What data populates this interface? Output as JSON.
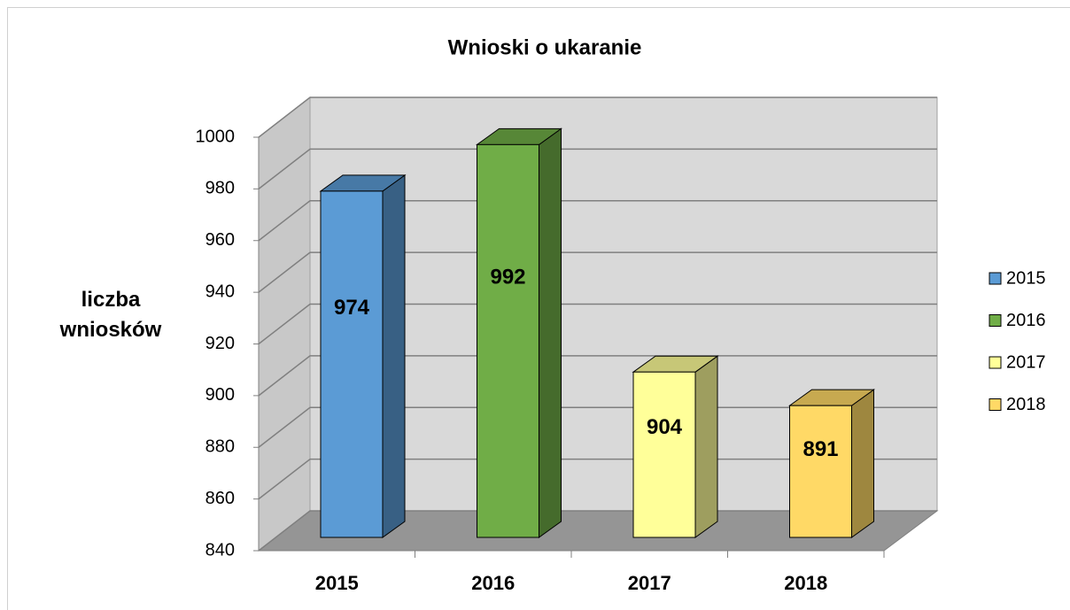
{
  "chart_data": {
    "type": "bar3d",
    "title": "Wnioski o ukaranie",
    "y_label": "liczba wniosków",
    "categories": [
      "2015",
      "2016",
      "2017",
      "2018"
    ],
    "values": [
      974,
      992,
      904,
      891
    ],
    "colors": [
      "#5b9bd5",
      "#70ad47",
      "#ffff99",
      "#ffd966"
    ],
    "ylim": [
      840,
      1000
    ],
    "yticks": [
      840,
      860,
      880,
      900,
      920,
      940,
      960,
      980,
      1000
    ],
    "grid": true,
    "legend": "right"
  }
}
